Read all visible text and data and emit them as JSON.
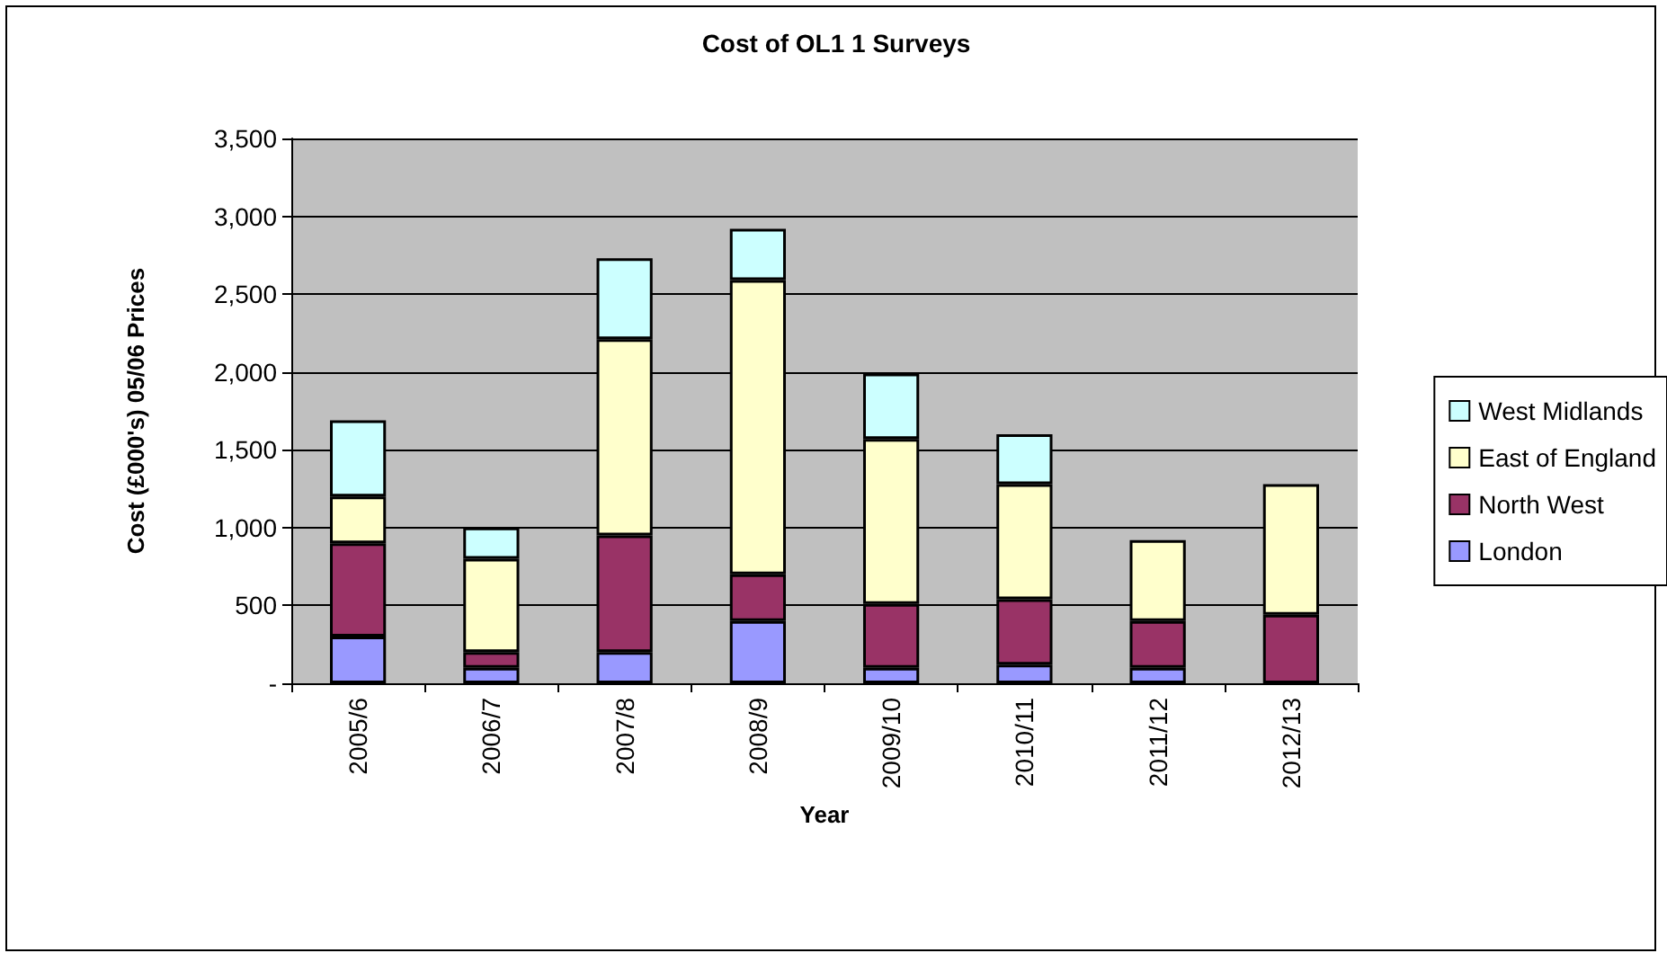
{
  "chart_data": {
    "type": "bar",
    "title": "Cost of OL1 1 Surveys",
    "xlabel": "Year",
    "ylabel": "Cost (£000's) 05/06 Prices",
    "stacked": true,
    "categories": [
      "2005/6",
      "2006/7",
      "2007/8",
      "2008/9",
      "2009/10",
      "2010/11",
      "2011/12",
      "2012/13"
    ],
    "series": [
      {
        "name": "London",
        "color": "#9999ff",
        "values": [
          300,
          100,
          200,
          400,
          100,
          120,
          100,
          null
        ]
      },
      {
        "name": "North West",
        "color": "#993366",
        "values": [
          600,
          100,
          750,
          300,
          410,
          420,
          300,
          440
        ]
      },
      {
        "name": "East of England",
        "color": "#ffffcc",
        "values": [
          300,
          600,
          1260,
          1890,
          1060,
          740,
          520,
          840
        ]
      },
      {
        "name": "West Midlands",
        "color": "#ccffff",
        "values": [
          490,
          200,
          520,
          330,
          420,
          320,
          null,
          null
        ]
      }
    ],
    "ylim": [
      0,
      3500
    ],
    "yticks": [
      {
        "value": 0,
        "label": "-"
      },
      {
        "value": 500,
        "label": "500"
      },
      {
        "value": 1000,
        "label": "1,000"
      },
      {
        "value": 1500,
        "label": "1,500"
      },
      {
        "value": 2000,
        "label": "2,000"
      },
      {
        "value": 2500,
        "label": "2,500"
      },
      {
        "value": 3000,
        "label": "3,000"
      },
      {
        "value": 3500,
        "label": "3,500"
      }
    ],
    "grid": "y",
    "legend": "right"
  }
}
